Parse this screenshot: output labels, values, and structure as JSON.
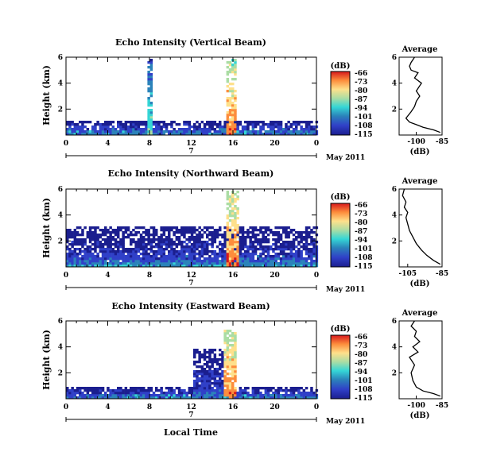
{
  "figure": {
    "xlabel": "Local Time",
    "date_label": "May 2011",
    "day_label": "7"
  },
  "colorbar": {
    "unit": "(dB)",
    "tick_labels": [
      "-66",
      "-73",
      "-80",
      "-87",
      "-94",
      "-101",
      "-108",
      "-115"
    ],
    "colors": [
      "#d7191c",
      "#fd8d3c",
      "#fee08b",
      "#abdda4",
      "#35d6d6",
      "#2b83ba",
      "#3040c8",
      "#1b1e8f"
    ]
  },
  "chart_data": [
    {
      "type": "heatmap",
      "title": "Echo Intensity (Vertical Beam)",
      "ylabel": "Height (km)",
      "xlim": [
        0,
        24
      ],
      "ylim": [
        0,
        6
      ],
      "x_ticks": [
        "0",
        "4",
        "8",
        "12",
        "16",
        "20",
        "0"
      ],
      "y_ticks": [
        "2",
        "4",
        "6"
      ],
      "color_range_db": [
        -115,
        -66
      ],
      "features": [
        {
          "x": [
            15.2,
            16.2
          ],
          "y_top": 6,
          "intensity_db": -70
        },
        {
          "x": [
            0,
            24
          ],
          "y_top": 1.2,
          "intensity_db": -100
        },
        {
          "x": [
            7.8,
            8.2
          ],
          "y_top": 6,
          "intensity_db": -90
        }
      ]
    },
    {
      "type": "line",
      "title": "Average",
      "xlabel": "(dB)",
      "xlim": [
        -110,
        -85
      ],
      "ylim": [
        0,
        6
      ],
      "x_ticks": [
        "-100",
        "-85"
      ],
      "y_ticks": [
        "2",
        "4",
        "6"
      ],
      "series": [
        {
          "x": [
            -86,
            -90,
            -96,
            -100,
            -104,
            -106,
            -103,
            -101,
            -100,
            -98,
            -100,
            -97,
            -101,
            -99,
            -103,
            -104,
            -103,
            -102,
            -101
          ],
          "y": [
            0.2,
            0.4,
            0.6,
            0.8,
            1.0,
            1.3,
            1.8,
            2.2,
            2.6,
            3.0,
            3.4,
            4.0,
            4.4,
            4.8,
            5.0,
            5.3,
            5.6,
            5.8,
            6.0
          ]
        }
      ]
    },
    {
      "type": "heatmap",
      "title": "Echo Intensity (Northward Beam)",
      "ylabel": "Height (km)",
      "xlim": [
        0,
        24
      ],
      "ylim": [
        0,
        6
      ],
      "x_ticks": [
        "0",
        "4",
        "8",
        "12",
        "16",
        "20",
        "0"
      ],
      "y_ticks": [
        "2",
        "4",
        "6"
      ],
      "color_range_db": [
        -115,
        -66
      ],
      "features": [
        {
          "x": [
            15.2,
            16.4
          ],
          "y_top": 6,
          "intensity_db": -70
        },
        {
          "x": [
            0,
            24
          ],
          "y_top": 3.2,
          "intensity_db": -104
        },
        {
          "x": [
            0,
            24
          ],
          "y_top": 0.8,
          "intensity_db": -94
        }
      ]
    },
    {
      "type": "line",
      "title": "Average",
      "xlabel": "(dB)",
      "xlim": [
        -110,
        -85
      ],
      "ylim": [
        0,
        6
      ],
      "x_ticks": [
        "-105",
        "-85"
      ],
      "y_ticks": [
        "2",
        "4",
        "6"
      ],
      "series": [
        {
          "x": [
            -86,
            -90,
            -94,
            -97,
            -100,
            -102,
            -104,
            -105,
            -106,
            -105,
            -107,
            -106,
            -108,
            -107
          ],
          "y": [
            0.2,
            0.5,
            0.9,
            1.3,
            1.8,
            2.3,
            2.8,
            3.3,
            3.8,
            4.2,
            4.6,
            5.0,
            5.5,
            6.0
          ]
        }
      ]
    },
    {
      "type": "heatmap",
      "title": "Echo Intensity (Eastward Beam)",
      "ylabel": "Height (km)",
      "xlim": [
        0,
        24
      ],
      "ylim": [
        0,
        6
      ],
      "x_ticks": [
        "0",
        "4",
        "8",
        "12",
        "16",
        "20",
        "0"
      ],
      "y_ticks": [
        "2",
        "4",
        "6"
      ],
      "color_range_db": [
        -115,
        -66
      ],
      "features": [
        {
          "x": [
            15.0,
            16.2
          ],
          "y_top": 5.5,
          "intensity_db": -70
        },
        {
          "x": [
            0,
            24
          ],
          "y_top": 1.0,
          "intensity_db": -100
        },
        {
          "x": [
            12.0,
            15.0
          ],
          "y_top": 4.0,
          "intensity_db": -104
        }
      ]
    },
    {
      "type": "line",
      "title": "Average",
      "xlabel": "(dB)",
      "xlim": [
        -110,
        -85
      ],
      "ylim": [
        0,
        6
      ],
      "x_ticks": [
        "-100",
        "-85"
      ],
      "y_ticks": [
        "2",
        "4",
        "6"
      ],
      "series": [
        {
          "x": [
            -86,
            -90,
            -96,
            -100,
            -102,
            -103,
            -101,
            -104,
            -99,
            -102,
            -98,
            -101,
            -100,
            -103,
            -101
          ],
          "y": [
            0.2,
            0.4,
            0.6,
            0.9,
            1.4,
            2.0,
            2.6,
            3.2,
            3.6,
            4.0,
            4.4,
            4.8,
            5.2,
            5.6,
            6.0
          ]
        }
      ]
    }
  ]
}
